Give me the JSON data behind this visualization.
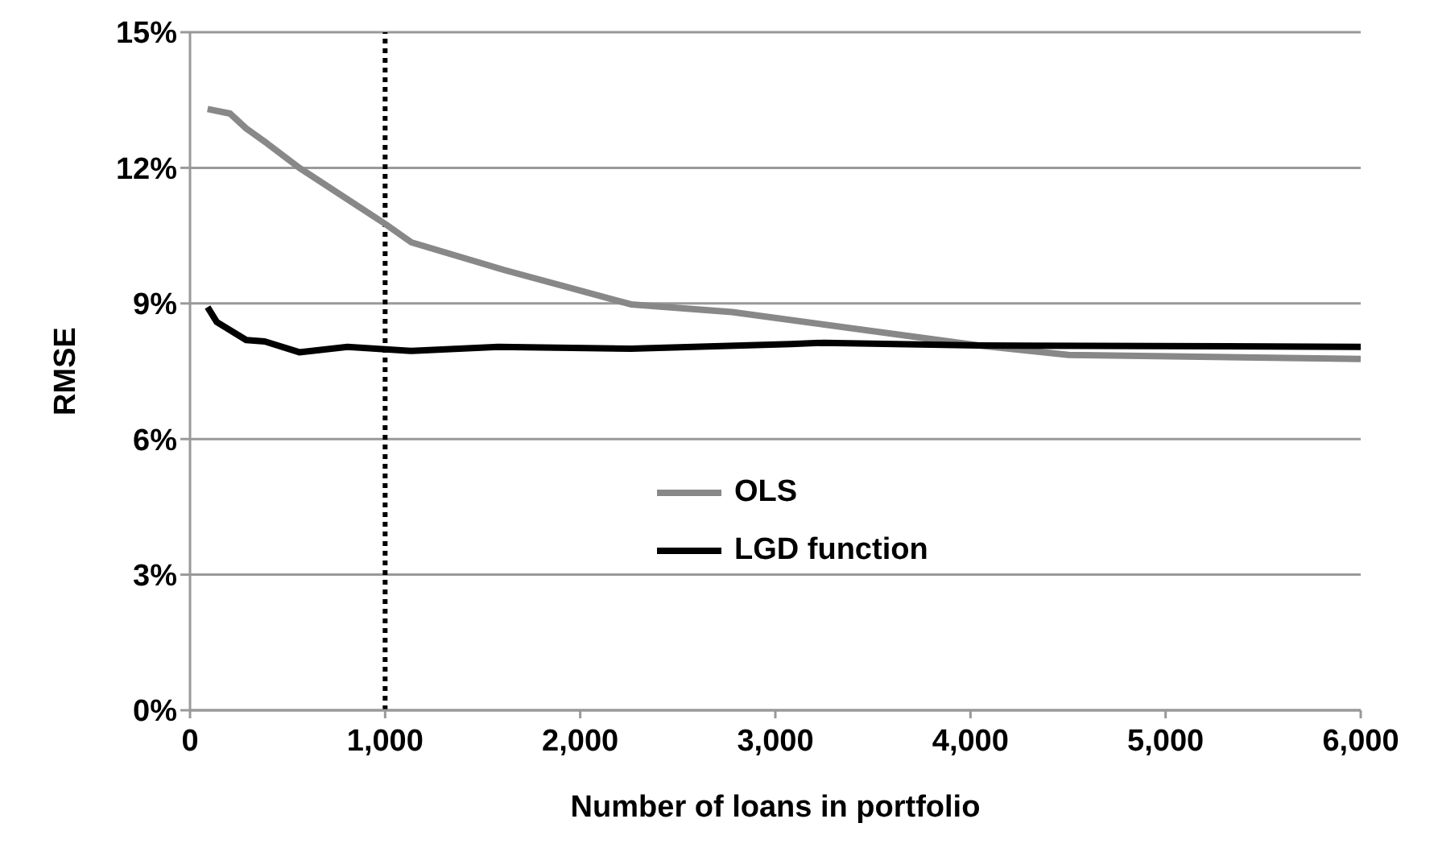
{
  "chart_data": {
    "type": "line",
    "xlabel": "Number of loans in portfolio",
    "ylabel": "RMSE",
    "series": [
      {
        "name": "OLS",
        "color": "#888888",
        "x": [
          90,
          205,
          288,
          395,
          560,
          1000,
          1135,
          1610,
          2260,
          2778,
          4043,
          4503,
          6000
        ],
        "values": [
          13.3,
          13.2,
          12.87,
          12.54,
          12.0,
          10.76,
          10.35,
          9.74,
          8.98,
          8.81,
          8.07,
          7.86,
          7.77
        ]
      },
      {
        "name": "LGD function",
        "color": "#000000",
        "x": [
          90,
          137,
          288,
          383,
          560,
          807,
          1135,
          1580,
          2260,
          3080,
          3250,
          4043,
          6000
        ],
        "values": [
          8.92,
          8.59,
          8.19,
          8.16,
          7.92,
          8.04,
          7.95,
          8.04,
          8.0,
          8.1,
          8.13,
          8.07,
          8.04
        ]
      }
    ],
    "xlim": [
      0,
      6000
    ],
    "xticks": [
      {
        "value": 0,
        "label": "0"
      },
      {
        "value": 1000,
        "label": "1,000"
      },
      {
        "value": 2000,
        "label": "2,000"
      },
      {
        "value": 3000,
        "label": "3,000"
      },
      {
        "value": 4000,
        "label": "4,000"
      },
      {
        "value": 5000,
        "label": "5,000"
      },
      {
        "value": 6000,
        "label": "6,000"
      }
    ],
    "ylim": [
      0,
      15
    ],
    "yticks": [
      {
        "value": 0,
        "label": "0%"
      },
      {
        "value": 3,
        "label": "3%"
      },
      {
        "value": 6,
        "label": "6%"
      },
      {
        "value": 9,
        "label": "9%"
      },
      {
        "value": 12,
        "label": "12%"
      },
      {
        "value": 15,
        "label": "15%"
      }
    ],
    "grid": "y",
    "legend": "center",
    "marker": "none",
    "line_style": "solid",
    "ref_lines": [
      {
        "axis": "x",
        "value": 1000,
        "color": "#000000",
        "line_style": "dotted"
      }
    ]
  }
}
